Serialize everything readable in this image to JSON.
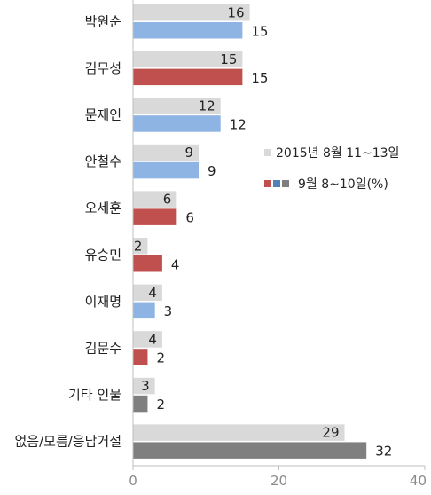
{
  "chart_data": {
    "type": "bar",
    "orientation": "horizontal",
    "categories": [
      "박원순",
      "김무성",
      "문재인",
      "안철수",
      "오세훈",
      "유승민",
      "이재명",
      "김문수",
      "기타 인물",
      "없음/모름/응답거절"
    ],
    "series": [
      {
        "name": "2015년 8월 11~13일",
        "values": [
          16,
          15,
          12,
          9,
          6,
          2,
          4,
          4,
          3,
          29
        ],
        "color": "#d9d9d9"
      },
      {
        "name": "9월 8~10일(%)",
        "values": [
          15,
          15,
          12,
          9,
          6,
          4,
          3,
          2,
          2,
          32
        ],
        "colors": [
          "#8eb4e3",
          "#c0504d",
          "#8eb4e3",
          "#8eb4e3",
          "#c0504d",
          "#c0504d",
          "#8eb4e3",
          "#c0504d",
          "#7f7f7f",
          "#7f7f7f"
        ]
      }
    ],
    "legend_markers": [
      "#c0504d",
      "#4f81bd",
      "#7f7f7f"
    ],
    "xlim": [
      0,
      40
    ],
    "xticks": [
      "0",
      "20",
      "40"
    ],
    "grid": false,
    "legend_position": "right",
    "title": "",
    "xlabel": "",
    "ylabel": ""
  }
}
